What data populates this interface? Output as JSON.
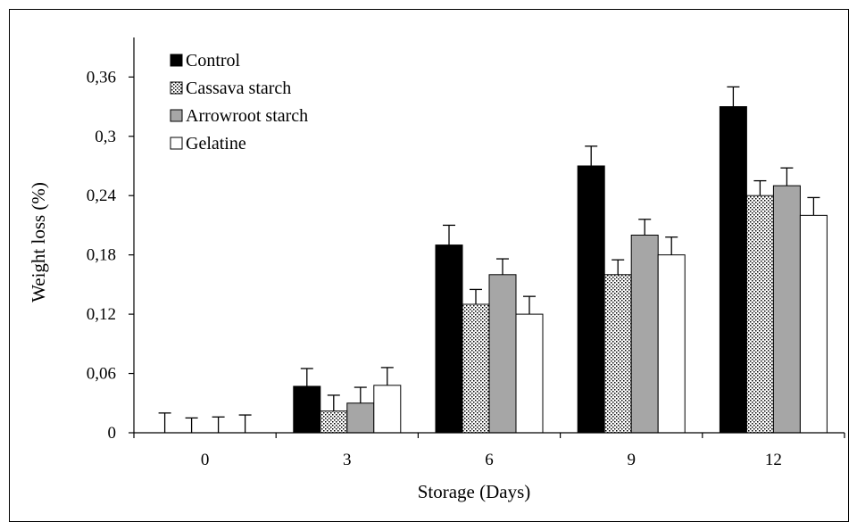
{
  "chart_data": {
    "type": "bar",
    "title": "",
    "xlabel": "Storage (Days)",
    "ylabel": "Weight loss (%)",
    "categories": [
      "0",
      "3",
      "6",
      "9",
      "12"
    ],
    "ylim": [
      0,
      0.4
    ],
    "yticks": [
      0,
      0.06,
      0.12,
      0.18,
      0.24,
      0.3,
      0.36
    ],
    "ytick_labels": [
      "0",
      "0,06",
      "0,12",
      "0,18",
      "0,24",
      "0,3",
      "0,36"
    ],
    "grid": false,
    "legend_position": "top-left",
    "series": [
      {
        "name": "Control",
        "fill": "solid",
        "color": "#000000",
        "values": [
          0,
          0.047,
          0.19,
          0.27,
          0.33
        ],
        "errors": [
          0.02,
          0.018,
          0.02,
          0.02,
          0.02
        ]
      },
      {
        "name": "Cassava starch",
        "fill": "dotted",
        "color": "#ffffff",
        "values": [
          0,
          0.022,
          0.13,
          0.16,
          0.24
        ],
        "errors": [
          0.015,
          0.016,
          0.015,
          0.015,
          0.015
        ]
      },
      {
        "name": "Arrowroot starch",
        "fill": "solid",
        "color": "#a6a6a6",
        "values": [
          0,
          0.03,
          0.16,
          0.2,
          0.25
        ],
        "errors": [
          0.016,
          0.016,
          0.016,
          0.016,
          0.018
        ]
      },
      {
        "name": "Gelatine",
        "fill": "solid",
        "color": "#ffffff",
        "values": [
          0,
          0.048,
          0.12,
          0.18,
          0.22
        ],
        "errors": [
          0.018,
          0.018,
          0.018,
          0.018,
          0.018
        ]
      }
    ]
  }
}
